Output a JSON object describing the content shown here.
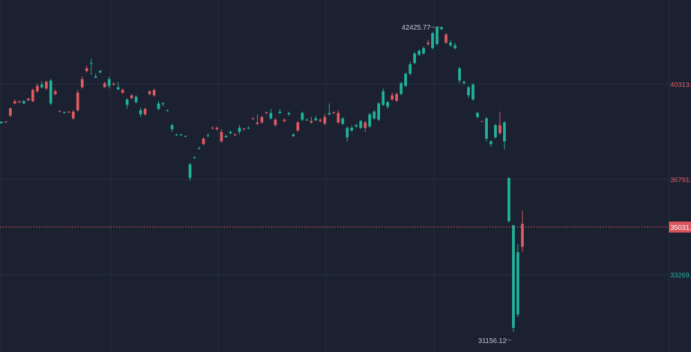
{
  "chart_data": {
    "type": "candlestick",
    "colors": {
      "background": "#1b2130",
      "grid": "#263042",
      "up": "#e05a62",
      "down": "#1fb39a",
      "current_price_bg": "#d9545c",
      "label_text": "#c7ccd6"
    },
    "grid": true,
    "y_axis_position": "right",
    "y_ticks": [
      {
        "value": 40313,
        "label": "40313.",
        "color": "#e05a62"
      },
      {
        "value": 36791,
        "label": "36791.",
        "color": "#e05a62"
      },
      {
        "value": 33269,
        "label": "33269.",
        "color": "#1fb39a"
      }
    ],
    "current_price": {
      "value": 35031,
      "label": "35031."
    },
    "annotations": {
      "high": {
        "value": 42425.77,
        "label": "42425.77"
      },
      "low": {
        "value": 31156.12,
        "label": "31156.12"
      }
    },
    "candles": [
      [
        38930,
        38870,
        38920,
        38860
      ],
      [
        38900,
        38930,
        38940,
        38890
      ],
      [
        39150,
        39420,
        39450,
        39100
      ],
      [
        39600,
        39680,
        39750,
        39580
      ],
      [
        39650,
        39680,
        39700,
        39600
      ],
      [
        39690,
        39600,
        39720,
        39580
      ],
      [
        39720,
        39780,
        39800,
        39690
      ],
      [
        39680,
        40100,
        40150,
        39650
      ],
      [
        40050,
        40250,
        40350,
        40000
      ],
      [
        40300,
        40200,
        40420,
        40150
      ],
      [
        40150,
        40400,
        40450,
        40100
      ],
      [
        40450,
        39600,
        40500,
        39550
      ],
      [
        39950,
        40050,
        40120,
        39900
      ],
      [
        39300,
        39320,
        39350,
        39280
      ],
      [
        39280,
        39250,
        39300,
        39230
      ],
      [
        39270,
        39300,
        39320,
        39250
      ],
      [
        39050,
        39300,
        39350,
        39000
      ],
      [
        39350,
        40000,
        40100,
        39300
      ],
      [
        40200,
        40500,
        40600,
        40150
      ],
      [
        40800,
        40900,
        41000,
        40750
      ],
      [
        41100,
        41080,
        41250,
        40650
      ],
      [
        40600,
        40550,
        40700,
        40550
      ],
      [
        40800,
        40750,
        40850,
        40720
      ],
      [
        40200,
        40350,
        40400,
        40200
      ],
      [
        40500,
        40250,
        40600,
        40150
      ],
      [
        40300,
        40340,
        40380,
        40260
      ],
      [
        40200,
        40120,
        40400,
        40100
      ],
      [
        40000,
        40100,
        40150,
        39950
      ],
      [
        39750,
        39550,
        39800,
        39400
      ],
      [
        39800,
        39900,
        39950,
        39750
      ],
      [
        39850,
        39650,
        39900,
        39600
      ],
      [
        39350,
        39200,
        39450,
        39100
      ],
      [
        39200,
        39400,
        39450,
        39150
      ],
      [
        39950,
        40050,
        40100,
        39900
      ],
      [
        39900,
        40100,
        40150,
        39850
      ],
      [
        39600,
        39400,
        39700,
        39350
      ],
      [
        39600,
        39580,
        39650,
        39500
      ],
      [
        39350,
        39330,
        39380,
        39300
      ],
      [
        38800,
        38650,
        38850,
        38550
      ],
      [
        38450,
        38430,
        38480,
        38400
      ],
      [
        38450,
        38430,
        38480,
        38400
      ],
      [
        38400,
        38380,
        38420,
        38350
      ],
      [
        37350,
        36850,
        37400,
        36750
      ],
      [
        37600,
        37580,
        37650,
        37550
      ],
      [
        37950,
        37930,
        38000,
        37900
      ],
      [
        38100,
        38300,
        38350,
        38050
      ],
      [
        38420,
        38400,
        38500,
        38350
      ],
      [
        38700,
        38700,
        38750,
        38650
      ],
      [
        38650,
        38700,
        38750,
        38600
      ],
      [
        38200,
        38550,
        38650,
        38150
      ],
      [
        38400,
        38350,
        38450,
        38350
      ],
      [
        38550,
        38500,
        38600,
        38450
      ],
      [
        38450,
        38450,
        38500,
        38400
      ],
      [
        38700,
        38550,
        38800,
        38450
      ],
      [
        38650,
        38670,
        38700,
        38600
      ],
      [
        38700,
        38680,
        38750,
        38650
      ],
      [
        39050,
        39050,
        39100,
        39000
      ],
      [
        38850,
        38900,
        39200,
        38800
      ],
      [
        38900,
        39100,
        39150,
        38850
      ],
      [
        39250,
        39280,
        39300,
        39200
      ],
      [
        39250,
        39050,
        39400,
        39000
      ],
      [
        38800,
        39000,
        39050,
        38750
      ],
      [
        39300,
        39250,
        39400,
        39200
      ],
      [
        38950,
        39000,
        39050,
        38900
      ],
      [
        39250,
        39200,
        39300,
        39150
      ],
      [
        38450,
        38400,
        38500,
        38350
      ],
      [
        38600,
        38900,
        38950,
        38550
      ],
      [
        39250,
        39000,
        39300,
        38950
      ],
      [
        39000,
        38980,
        39050,
        38950
      ],
      [
        38900,
        38950,
        39100,
        38850
      ],
      [
        39050,
        38980,
        39150,
        38950
      ],
      [
        38950,
        39000,
        39050,
        38900
      ],
      [
        38850,
        39100,
        39200,
        38800
      ],
      [
        39250,
        39200,
        39600,
        39150
      ],
      [
        39250,
        39280,
        39300,
        39200
      ],
      [
        38900,
        39250,
        39350,
        38850
      ],
      [
        39050,
        38850,
        39100,
        38800
      ],
      [
        38700,
        38350,
        38750,
        38200
      ],
      [
        38700,
        38600,
        38800,
        38550
      ],
      [
        38800,
        38750,
        38850,
        38700
      ],
      [
        38950,
        38700,
        39000,
        38650
      ],
      [
        38700,
        38900,
        38950,
        38550
      ],
      [
        39200,
        38750,
        39250,
        38700
      ],
      [
        39300,
        39050,
        39350,
        39000
      ],
      [
        39600,
        39000,
        39650,
        38950
      ],
      [
        40050,
        39550,
        40150,
        39500
      ],
      [
        39650,
        39480,
        39700,
        39400
      ],
      [
        39750,
        39900,
        40000,
        39700
      ],
      [
        39700,
        39950,
        40000,
        39650
      ],
      [
        40350,
        39950,
        40400,
        39900
      ],
      [
        40700,
        40250,
        40750,
        40200
      ],
      [
        41050,
        40700,
        41150,
        40650
      ],
      [
        41450,
        41100,
        41500,
        41050
      ],
      [
        41550,
        41400,
        41600,
        41350
      ],
      [
        41650,
        41450,
        41700,
        41400
      ],
      [
        41800,
        41850,
        41950,
        41750
      ],
      [
        42200,
        41650,
        42250,
        41600
      ],
      [
        42400,
        41800,
        42450,
        41750
      ],
      [
        42425.77,
        42350,
        42425.77,
        42300
      ],
      [
        41850,
        42150,
        42200,
        41800
      ],
      [
        41850,
        41750,
        41950,
        41700
      ],
      [
        41750,
        41650,
        41850,
        41600
      ],
      [
        40900,
        40450,
        40950,
        40350
      ],
      [
        40400,
        40350,
        40450,
        40300
      ],
      [
        40200,
        39900,
        40250,
        39800
      ],
      [
        40300,
        39750,
        40350,
        39700
      ],
      [
        39250,
        39100,
        39300,
        39050
      ],
      [
        38950,
        38950,
        38950,
        38950
      ],
      [
        39050,
        38300,
        39100,
        38200
      ],
      [
        38200,
        38100,
        38250,
        38000
      ],
      [
        38800,
        38350,
        38850,
        38300
      ],
      [
        38500,
        38800,
        39300,
        38450
      ],
      [
        38900,
        38200,
        38950,
        37900
      ],
      [
        36850,
        35250,
        36850,
        35200
      ],
      [
        35100,
        31300,
        35100,
        31156.12
      ],
      [
        34100,
        31800,
        34400,
        31700
      ],
      [
        34300,
        35150,
        35650,
        34100
      ]
    ]
  }
}
